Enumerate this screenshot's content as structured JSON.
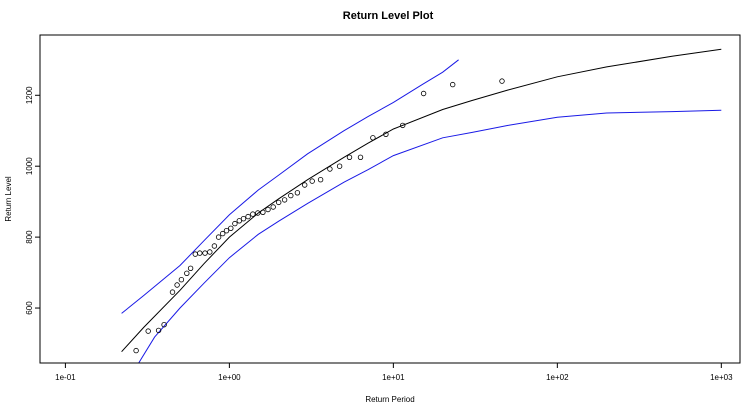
{
  "chart_data": {
    "type": "line",
    "title": "Return Level Plot",
    "xlabel": "Return Period",
    "ylabel": "Return Level",
    "x_scale": "log",
    "xlim": [
      0.07,
      1300
    ],
    "ylim": [
      445,
      1370
    ],
    "x_ticks": [
      {
        "value": 0.1,
        "label": "1e-01"
      },
      {
        "value": 1,
        "label": "1e+00"
      },
      {
        "value": 10,
        "label": "1e+01"
      },
      {
        "value": 100,
        "label": "1e+02"
      },
      {
        "value": 1000,
        "label": "1e+03"
      }
    ],
    "y_ticks": [
      {
        "value": 600,
        "label": "600"
      },
      {
        "value": 800,
        "label": "800"
      },
      {
        "value": 1000,
        "label": "1000"
      },
      {
        "value": 1200,
        "label": "1200"
      }
    ],
    "grid": false,
    "colors": {
      "fit": "#000000",
      "ci": "#1a1ae6",
      "points": "#000000"
    },
    "series": [
      {
        "role": "fit",
        "x": [
          0.22,
          0.3,
          0.5,
          0.7,
          1.0,
          1.5,
          2,
          3,
          5,
          7,
          10,
          20,
          30,
          50,
          100,
          200,
          500,
          1000
        ],
        "y": [
          477,
          545,
          650,
          725,
          800,
          868,
          908,
          962,
          1025,
          1065,
          1105,
          1160,
          1185,
          1215,
          1252,
          1280,
          1310,
          1330
        ]
      },
      {
        "role": "ci-upper",
        "x": [
          0.22,
          0.3,
          0.5,
          0.7,
          1.0,
          1.5,
          2,
          3,
          5,
          7,
          10,
          15,
          20,
          25
        ],
        "y": [
          585,
          635,
          720,
          790,
          863,
          933,
          975,
          1035,
          1100,
          1140,
          1180,
          1230,
          1265,
          1300
        ]
      },
      {
        "role": "ci-lower",
        "x": [
          0.28,
          0.35,
          0.5,
          0.7,
          1.0,
          1.5,
          2,
          3,
          5,
          7,
          10,
          20,
          30,
          50,
          100,
          200,
          500,
          1000
        ],
        "y": [
          445,
          518,
          600,
          670,
          742,
          808,
          845,
          895,
          955,
          990,
          1030,
          1080,
          1095,
          1115,
          1138,
          1150,
          1154,
          1158
        ]
      },
      {
        "role": "observed",
        "x": [
          0.27,
          0.32,
          0.37,
          0.4,
          0.45,
          0.48,
          0.51,
          0.55,
          0.58,
          0.62,
          0.66,
          0.71,
          0.76,
          0.81,
          0.86,
          0.91,
          0.96,
          1.02,
          1.08,
          1.15,
          1.22,
          1.3,
          1.39,
          1.49,
          1.6,
          1.72,
          1.85,
          2.0,
          2.17,
          2.37,
          2.6,
          2.88,
          3.2,
          3.6,
          4.1,
          4.7,
          5.4,
          6.3,
          7.5,
          9.0,
          11.4,
          15.3,
          23.0,
          46.0
        ],
        "y": [
          480,
          535,
          537,
          553,
          645,
          665,
          680,
          698,
          712,
          752,
          755,
          755,
          758,
          775,
          800,
          810,
          818,
          825,
          838,
          846,
          852,
          858,
          865,
          868,
          870,
          878,
          885,
          898,
          905,
          917,
          925,
          947,
          958,
          962,
          992,
          1000,
          1025,
          1025,
          1080,
          1090,
          1115,
          1205,
          1230,
          1240
        ]
      }
    ]
  }
}
